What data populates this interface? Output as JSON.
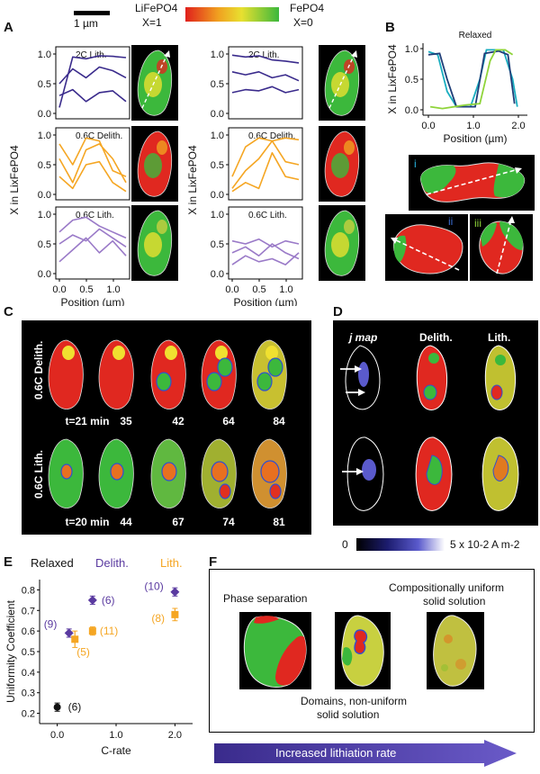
{
  "panel_labels": {
    "A": "A",
    "B": "B",
    "C": "C",
    "D": "D",
    "E": "E",
    "F": "F"
  },
  "legend_top": {
    "scale_bar": "1 µm",
    "left_name": "LiFePO4",
    "left_x": "X=1",
    "right_name": "FePO4",
    "right_x": "X=0",
    "colors": [
      "#e0201c",
      "#f0a020",
      "#e8e030",
      "#3cb83c"
    ]
  },
  "panel_a": {
    "ylabel_left": "X in LixFePO4",
    "ylabel_right": "X in LixFePO4",
    "xlabel": "Position (µm)",
    "yticks": [
      "0.0",
      "0.5",
      "1.0"
    ],
    "xticks": [
      "0.0",
      "0.5",
      "1.0"
    ],
    "rows_left": [
      {
        "label": "2C Lith.",
        "color": "#3a2b8c"
      },
      {
        "label": "0.6C Delith.",
        "color": "#f5a623"
      },
      {
        "label": "0.6C Lith.",
        "color": "#9a7ac8"
      }
    ],
    "rows_right": [
      {
        "label": "2C Lith.",
        "color": "#3a2b8c"
      },
      {
        "label": "0.6C Delith.",
        "color": "#f5a623"
      },
      {
        "label": "0.6C Lith.",
        "color": "#9a7ac8"
      }
    ]
  },
  "panel_b": {
    "title": "Relaxed",
    "ylabel": "X in LixFePO4",
    "xlabel": "Position (µm)",
    "yticks": [
      "0.0",
      "0.5",
      "1.0"
    ],
    "xticks": [
      "0.0",
      "1.0",
      "2.0"
    ],
    "particles": [
      "i",
      "ii",
      "iii"
    ],
    "line_colors": [
      "#1aaec0",
      "#1f3e78",
      "#8fd43a"
    ]
  },
  "panel_c": {
    "row1_label": "0.6C Delith.",
    "row1_times": [
      "t=21 min",
      "35",
      "42",
      "64",
      "84"
    ],
    "row2_label": "0.6C Lith.",
    "row2_times": [
      "t=20 min",
      "44",
      "67",
      "74",
      "81"
    ]
  },
  "panel_d": {
    "col_headers": [
      "j map",
      "Delith.",
      "Lith."
    ],
    "scale_min": "0",
    "scale_max": "5 x 10-2 A m-2"
  },
  "panel_e": {
    "legend": [
      {
        "label": "Relaxed",
        "color": "#111111"
      },
      {
        "label": "Delith.",
        "color": "#5a3aa0"
      },
      {
        "label": "Lith.",
        "color": "#f5a623"
      }
    ],
    "ylabel": "Uniformity Coefficient",
    "xlabel": "C-rate",
    "yticks": [
      "0.2",
      "0.3",
      "0.4",
      "0.5",
      "0.6",
      "0.7",
      "0.8"
    ],
    "xticks": [
      "0.0",
      "1.0",
      "2.0"
    ]
  },
  "chart_data": {
    "type": "scatter",
    "xlabel": "C-rate",
    "ylabel": "Uniformity Coefficient",
    "xlim": [
      -0.3,
      2.3
    ],
    "ylim": [
      0.15,
      0.85
    ],
    "series": [
      {
        "name": "Relaxed",
        "color": "#111111",
        "marker": "circle",
        "points": [
          {
            "x": 0.0,
            "y": 0.23,
            "err": 0.02,
            "n": "(6)"
          }
        ]
      },
      {
        "name": "Delith.",
        "color": "#5a3aa0",
        "marker": "diamond",
        "points": [
          {
            "x": 0.2,
            "y": 0.59,
            "err": 0.02,
            "n": "(9)"
          },
          {
            "x": 0.6,
            "y": 0.75,
            "err": 0.02,
            "n": "(6)"
          },
          {
            "x": 2.0,
            "y": 0.79,
            "err": 0.02,
            "n": "(10)"
          }
        ]
      },
      {
        "name": "Lith.",
        "color": "#f5a623",
        "marker": "square",
        "points": [
          {
            "x": 0.3,
            "y": 0.56,
            "err": 0.04,
            "n": "(5)"
          },
          {
            "x": 0.6,
            "y": 0.6,
            "err": 0.02,
            "n": "(11)"
          },
          {
            "x": 2.0,
            "y": 0.68,
            "err": 0.03,
            "n": "(8)"
          }
        ]
      }
    ]
  },
  "panel_f": {
    "label1": "Phase separation",
    "label2a": "Compositionally uniform",
    "label2b": "solid solution",
    "label3a": "Domains, non-uniform",
    "label3b": "solid solution",
    "arrow_text": "Increased lithiation rate"
  }
}
